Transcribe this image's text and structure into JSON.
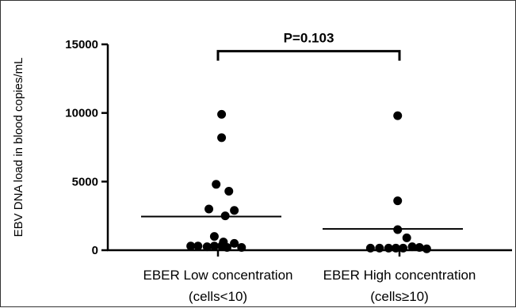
{
  "chart_data": {
    "type": "scatter",
    "ylabel": "EBV DNA load in blood copies/mL",
    "xlabel": "",
    "ylim": [
      0,
      15000
    ],
    "yticks": [
      "0",
      "5000",
      "10000",
      "15000"
    ],
    "ytick_values": [
      0,
      5000,
      10000,
      15000
    ],
    "categories": [
      {
        "line1": "EBER Low concentration",
        "line2": "(cells<10)"
      },
      {
        "line1": "EBER High concentration",
        "line2": "(cells≥10)"
      }
    ],
    "series": [
      {
        "category_index": 0,
        "mean": 2450,
        "points": [
          {
            "offset": -0.15,
            "y": 300
          },
          {
            "offset": -0.11,
            "y": 300
          },
          {
            "offset": -0.06,
            "y": 250
          },
          {
            "offset": -0.02,
            "y": 300
          },
          {
            "offset": 0.02,
            "y": 300
          },
          {
            "offset": 0.05,
            "y": 200
          },
          {
            "offset": 0.09,
            "y": 500
          },
          {
            "offset": 0.13,
            "y": 200
          },
          {
            "offset": -0.02,
            "y": 1000
          },
          {
            "offset": 0.03,
            "y": 600
          },
          {
            "offset": -0.05,
            "y": 3000
          },
          {
            "offset": 0.04,
            "y": 2500
          },
          {
            "offset": 0.09,
            "y": 2900
          },
          {
            "offset": -0.01,
            "y": 4800
          },
          {
            "offset": 0.06,
            "y": 4300
          },
          {
            "offset": 0.02,
            "y": 8200
          },
          {
            "offset": 0.02,
            "y": 9900
          }
        ]
      },
      {
        "category_index": 1,
        "mean": 1550,
        "points": [
          {
            "offset": -0.16,
            "y": 150
          },
          {
            "offset": -0.11,
            "y": 150
          },
          {
            "offset": -0.06,
            "y": 150
          },
          {
            "offset": -0.02,
            "y": 150
          },
          {
            "offset": 0.02,
            "y": 150
          },
          {
            "offset": 0.07,
            "y": 250
          },
          {
            "offset": 0.11,
            "y": 200
          },
          {
            "offset": 0.15,
            "y": 100
          },
          {
            "offset": 0.04,
            "y": 900
          },
          {
            "offset": -0.01,
            "y": 1500
          },
          {
            "offset": -0.01,
            "y": 3600
          },
          {
            "offset": -0.01,
            "y": 9800
          }
        ]
      }
    ],
    "annotation": {
      "text": "P=0.103",
      "bracket_y": 14500
    }
  }
}
